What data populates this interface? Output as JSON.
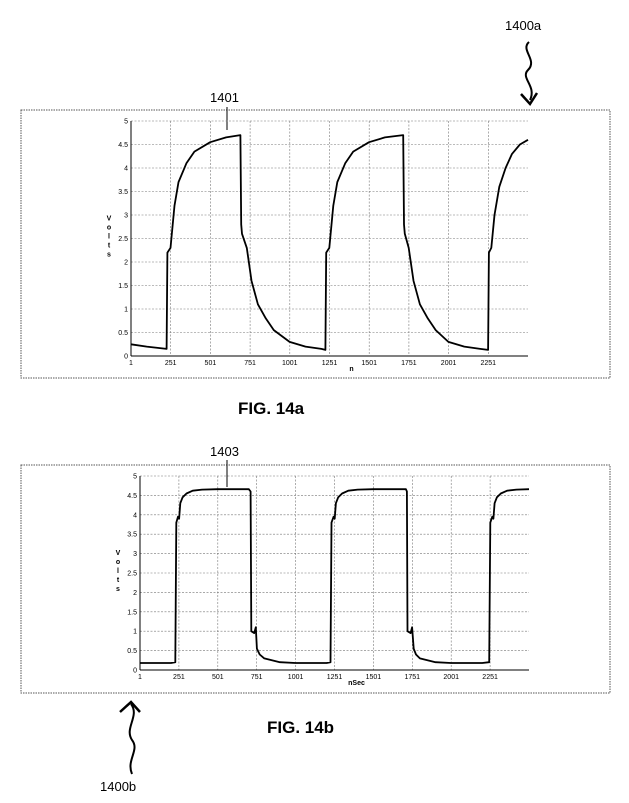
{
  "figures": [
    {
      "caption": "FIG. 14a",
      "ref_label": "1400a",
      "curve_label": "1401"
    },
    {
      "caption": "FIG. 14b",
      "ref_label": "1400b",
      "curve_label": "1403"
    }
  ],
  "chart_data": [
    {
      "type": "line",
      "title": "",
      "xlabel": "n",
      "ylabel": "Volts",
      "xlim": [
        1,
        2501
      ],
      "ylim": [
        0,
        5
      ],
      "grid": true,
      "x_ticks": [
        "1",
        "251",
        "501",
        "751",
        "1001",
        "1251",
        "1501",
        "1751",
        "2001",
        "2251"
      ],
      "y_ticks": [
        "0",
        "0.5",
        "1",
        "1.5",
        "2",
        "2.5",
        "3",
        "3.5",
        "4",
        "4.5",
        "5"
      ],
      "series": [
        {
          "x": [
            1,
            100,
            225,
            230,
            250,
            275,
            300,
            350,
            400,
            500,
            600,
            690,
            695,
            700,
            730,
            760,
            800,
            850,
            900,
            1000,
            1100,
            1200,
            1225,
            1230,
            1250,
            1275,
            1300,
            1350,
            1400,
            1500,
            1600,
            1715,
            1720,
            1725,
            1750,
            1780,
            1820,
            1870,
            1920,
            2000,
            2100,
            2200,
            2250,
            2255,
            2270,
            2290,
            2320,
            2360,
            2400,
            2450,
            2501
          ],
          "y": [
            0.25,
            0.2,
            0.15,
            2.2,
            2.3,
            3.2,
            3.7,
            4.1,
            4.35,
            4.55,
            4.65,
            4.7,
            2.8,
            2.6,
            2.3,
            1.6,
            1.1,
            0.8,
            0.55,
            0.3,
            0.2,
            0.15,
            0.13,
            2.2,
            2.3,
            3.2,
            3.7,
            4.1,
            4.35,
            4.55,
            4.65,
            4.7,
            2.8,
            2.6,
            2.3,
            1.6,
            1.1,
            0.8,
            0.55,
            0.3,
            0.2,
            0.15,
            0.13,
            2.2,
            2.3,
            3.0,
            3.6,
            4.0,
            4.3,
            4.5,
            4.6
          ]
        }
      ]
    },
    {
      "type": "line",
      "title": "",
      "xlabel": "nSec",
      "ylabel": "Volts",
      "xlim": [
        1,
        2501
      ],
      "ylim": [
        0,
        5
      ],
      "grid": true,
      "x_ticks": [
        "1",
        "251",
        "501",
        "751",
        "1001",
        "1251",
        "1501",
        "1751",
        "2001",
        "2251"
      ],
      "y_ticks": [
        "0",
        "0.5",
        "1",
        "1.5",
        "2",
        "2.5",
        "3",
        "3.5",
        "4",
        "4.5",
        "5"
      ],
      "series": [
        {
          "x": [
            1,
            200,
            228,
            234,
            245,
            252,
            260,
            275,
            300,
            340,
            400,
            500,
            600,
            700,
            712,
            716,
            735,
            745,
            752,
            770,
            800,
            900,
            1000,
            1100,
            1200,
            1225,
            1232,
            1245,
            1252,
            1260,
            1275,
            1300,
            1340,
            1400,
            1500,
            1600,
            1710,
            1716,
            1720,
            1740,
            1750,
            1760,
            1775,
            1800,
            1900,
            2000,
            2100,
            2200,
            2245,
            2252,
            2265,
            2272,
            2280,
            2295,
            2320,
            2360,
            2420,
            2501
          ],
          "y": [
            0.18,
            0.18,
            0.2,
            3.8,
            3.95,
            3.9,
            4.3,
            4.45,
            4.55,
            4.62,
            4.65,
            4.66,
            4.66,
            4.66,
            4.6,
            1.0,
            0.95,
            1.1,
            0.55,
            0.4,
            0.3,
            0.2,
            0.18,
            0.18,
            0.18,
            0.2,
            3.8,
            3.95,
            3.9,
            4.3,
            4.45,
            4.55,
            4.62,
            4.65,
            4.66,
            4.66,
            4.66,
            4.6,
            1.0,
            0.95,
            1.1,
            0.55,
            0.4,
            0.3,
            0.2,
            0.18,
            0.18,
            0.18,
            0.2,
            3.8,
            3.95,
            3.9,
            4.3,
            4.45,
            4.55,
            4.62,
            4.65,
            4.66
          ]
        }
      ]
    }
  ]
}
